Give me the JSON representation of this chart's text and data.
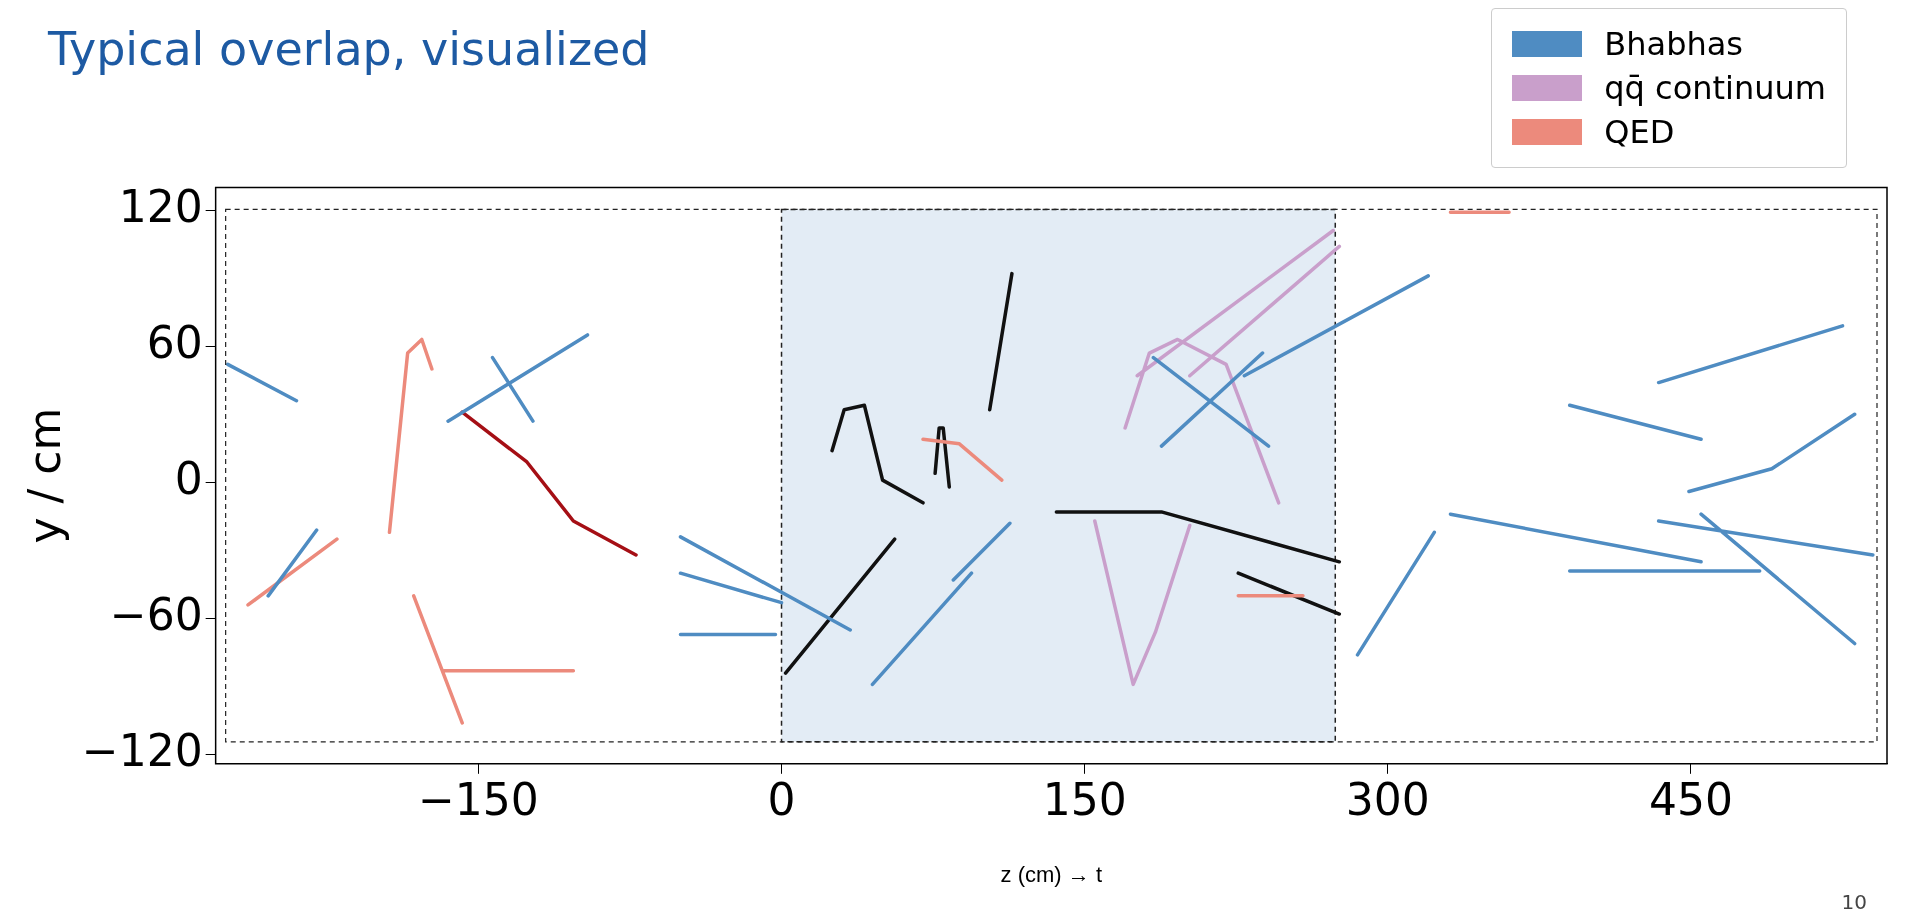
{
  "chart_data": {
    "type": "line",
    "title": "Typical overlap, visualized",
    "xlabel": "z (cm) → t",
    "ylabel": "y / cm",
    "xlim": [
      -280,
      547
    ],
    "ylim": [
      -124,
      130
    ],
    "xticks": [
      {
        "value": -150,
        "label": "−150"
      },
      0,
      150,
      300,
      450
    ],
    "yticks": [
      {
        "value": -120,
        "label": "−120"
      },
      {
        "value": -60,
        "label": "−60"
      },
      0,
      60,
      120
    ],
    "grid": false,
    "legend": "top right",
    "marker": "none",
    "line_style": "solid",
    "bands": [
      {
        "axis": "x",
        "from": 0,
        "to": 274,
        "color": "#e3ecf5"
      }
    ],
    "series": [
      {
        "name": "Bhabhas",
        "color": "#4f8cc2",
        "x": [
          -274,
          -240,
          null,
          -165,
          -96,
          null,
          -143,
          -123,
          null,
          -254,
          -230,
          null,
          -50,
          34,
          null,
          -50,
          0,
          null,
          -50,
          -3,
          null,
          45,
          94,
          null,
          85,
          113,
          null,
          188,
          238,
          null,
          184,
          241,
          null,
          229,
          320,
          null,
          285,
          323,
          null,
          434,
          525,
          null,
          390,
          455,
          null,
          449,
          490,
          531,
          null,
          331,
          455,
          null,
          434,
          540,
          null,
          390,
          484,
          null,
          455,
          531
        ],
        "values": [
          52,
          36,
          null,
          27,
          65,
          null,
          55,
          27,
          null,
          -50,
          -21,
          null,
          -24,
          -65,
          null,
          -40,
          -53,
          null,
          -67,
          -67,
          null,
          -89,
          -40,
          null,
          -43,
          -18,
          null,
          16,
          57,
          null,
          55,
          16,
          null,
          47,
          91,
          null,
          -76,
          -22,
          null,
          44,
          69,
          null,
          34,
          19,
          null,
          -4,
          6,
          30,
          null,
          -14,
          -35,
          null,
          -17,
          -32,
          null,
          -39,
          -39,
          null,
          -14,
          -71
        ]
      },
      {
        "name": "qq̄ continuum",
        "color": "#c99fcb",
        "x": [
          170,
          182,
          196,
          220,
          246,
          null,
          176,
          273,
          null,
          202,
          276,
          null,
          155,
          174,
          185,
          202
        ],
        "values": [
          24,
          57,
          63,
          52,
          -9,
          null,
          47,
          111,
          null,
          47,
          104,
          null,
          -17,
          -89,
          -66,
          -19
        ]
      },
      {
        "name": "QED",
        "color": "#ec8a7c",
        "x": [
          -194,
          -185,
          -178,
          -173,
          null,
          -182,
          -158,
          null,
          -167,
          -103,
          null,
          -264,
          -220,
          null,
          70,
          88,
          109,
          null,
          226,
          258,
          null,
          331,
          360
        ],
        "values": [
          -22,
          57,
          63,
          50,
          null,
          -50,
          -106,
          null,
          -83,
          -83,
          null,
          -54,
          -25,
          null,
          19,
          17,
          1,
          null,
          -50,
          -50,
          null,
          119,
          119
        ]
      },
      {
        "color": "#a50f15",
        "x": [
          -158,
          -126,
          -103,
          -72
        ],
        "values": [
          31,
          9,
          -17,
          -32
        ]
      },
      {
        "color": "#111111",
        "x": [
          2,
          56,
          null,
          25,
          31,
          41,
          50,
          70,
          null,
          103,
          114,
          null,
          136,
          188,
          276,
          null,
          226,
          276,
          null,
          76,
          78,
          80,
          83
        ],
        "values": [
          -84,
          -25,
          null,
          14,
          32,
          34,
          1,
          -9,
          null,
          32,
          92,
          null,
          -13,
          -13,
          -35,
          null,
          -40,
          -58,
          null,
          4,
          24,
          24,
          -2
        ]
      }
    ],
    "annotations": [
      "10"
    ]
  }
}
